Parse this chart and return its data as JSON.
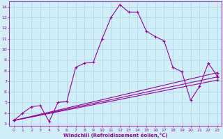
{
  "bg_color": "#d0eef8",
  "line_color": "#990099",
  "grid_color": "#b0d8e8",
  "xlabel": "Windchill (Refroidissement éolien,°C)",
  "xlim": [
    -0.5,
    23.5
  ],
  "ylim": [
    2.8,
    14.5
  ],
  "yticks": [
    3,
    4,
    5,
    6,
    7,
    8,
    9,
    10,
    11,
    12,
    13,
    14
  ],
  "xticks": [
    0,
    1,
    2,
    3,
    4,
    5,
    6,
    7,
    8,
    9,
    10,
    11,
    12,
    13,
    14,
    15,
    16,
    17,
    18,
    19,
    20,
    21,
    22,
    23
  ],
  "series_main": {
    "x": [
      0,
      1,
      2,
      3,
      4,
      5,
      6,
      7,
      8,
      9,
      10,
      11,
      12,
      13,
      14,
      15,
      16,
      17,
      18,
      19,
      20,
      21,
      22,
      23
    ],
    "y": [
      3.3,
      4.0,
      4.6,
      4.7,
      3.2,
      5.0,
      5.1,
      8.3,
      8.7,
      8.8,
      11.0,
      13.0,
      14.2,
      13.5,
      13.5,
      11.7,
      11.2,
      10.8,
      8.3,
      7.9,
      5.2,
      6.5,
      8.7,
      7.5
    ]
  },
  "series_linear": [
    {
      "x": [
        0,
        23
      ],
      "y": [
        3.3,
        7.8
      ]
    },
    {
      "x": [
        0,
        23
      ],
      "y": [
        3.3,
        7.4
      ]
    },
    {
      "x": [
        0,
        23
      ],
      "y": [
        3.3,
        7.1
      ]
    }
  ]
}
